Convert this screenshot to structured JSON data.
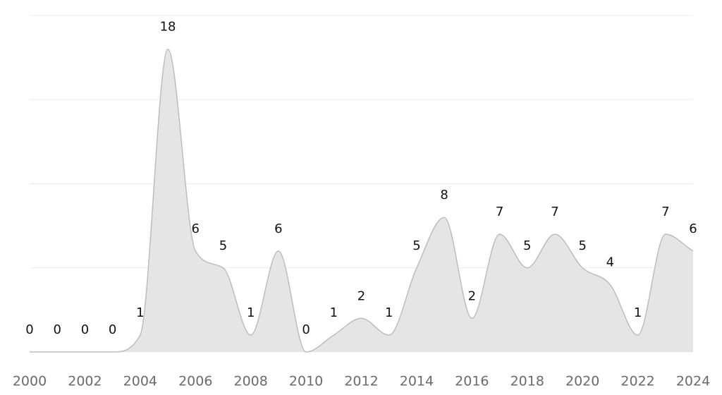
{
  "chart_data": {
    "type": "area",
    "x": [
      2000,
      2001,
      2002,
      2003,
      2004,
      2005,
      2006,
      2007,
      2008,
      2009,
      2010,
      2011,
      2012,
      2013,
      2014,
      2015,
      2016,
      2017,
      2018,
      2019,
      2020,
      2021,
      2022,
      2023,
      2024
    ],
    "values": [
      0,
      0,
      0,
      0,
      1,
      18,
      6,
      5,
      1,
      6,
      0,
      1,
      2,
      1,
      5,
      8,
      2,
      7,
      5,
      7,
      5,
      4,
      1,
      7,
      6
    ],
    "color": "#e5e5e5",
    "line_color": "#bdbdbd",
    "xlim": [
      2000,
      2024
    ],
    "xticks": [
      2000,
      2002,
      2004,
      2006,
      2008,
      2010,
      2012,
      2014,
      2016,
      2018,
      2020,
      2022,
      2024
    ],
    "ylim": [
      0,
      20
    ],
    "yticks": [
      0,
      5,
      10,
      15,
      20
    ],
    "grid": true
  }
}
